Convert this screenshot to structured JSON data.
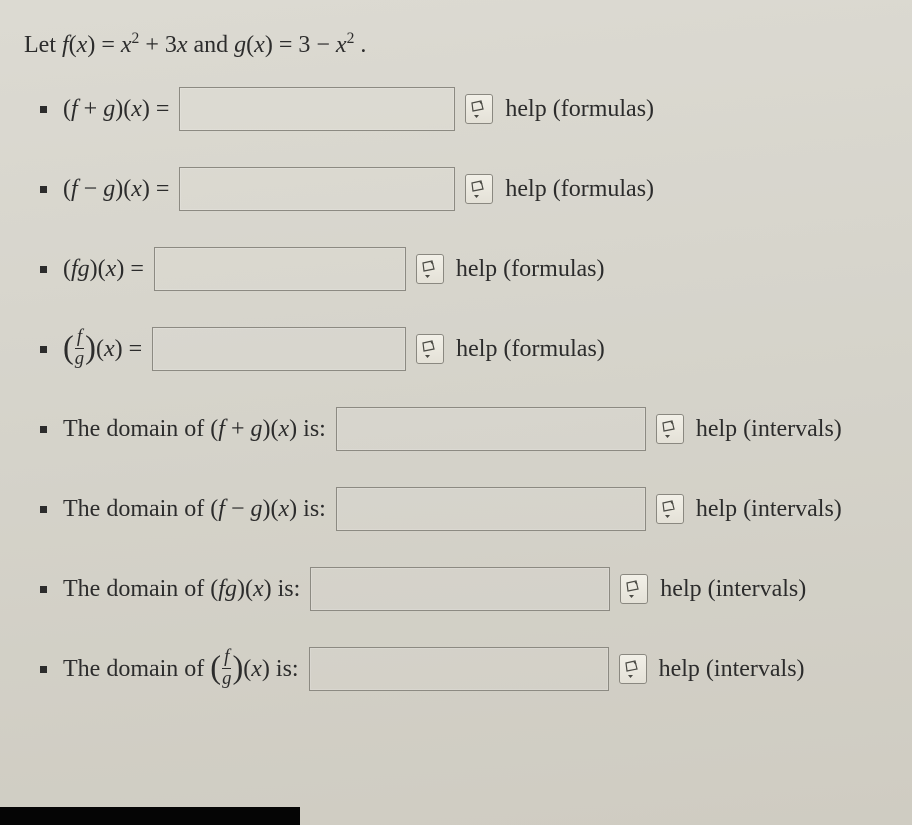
{
  "prompt": {
    "prefix": "Let ",
    "f_lhs_html": "<span class='math'>f</span><span class='paren'>(</span><span class='math'>x</span><span class='paren'>)</span> <span class='eq'>=</span> <span class='math'>x</span><span class='sup'>2</span> <span class='op'>+</span> <span class='num'>3</span><span class='math'>x</span>",
    "mid": " and ",
    "g_lhs_html": "<span class='math'>g</span><span class='paren'>(</span><span class='math'>x</span><span class='paren'>)</span> <span class='eq'>=</span> <span class='num'>3</span> <span class='op'>−</span> <span class='math'>x</span><span class='sup'>2</span>",
    "suffix": "."
  },
  "help_formulas": "help (formulas)",
  "help_intervals": "help (intervals)",
  "rows": {
    "r1_label_html": "<span class='paren'>(</span><span class='math'>f</span> <span class='op'>+</span> <span class='math'>g</span><span class='paren'>)(</span><span class='math'>x</span><span class='paren'>)</span> <span class='eq'>=</span>",
    "r2_label_html": "<span class='paren'>(</span><span class='math'>f</span> <span class='op'>−</span> <span class='math'>g</span><span class='paren'>)(</span><span class='math'>x</span><span class='paren'>)</span> <span class='eq'>=</span>",
    "r3_label_html": "<span class='paren'>(</span><span class='math'>f</span><span class='math'>g</span><span class='paren'>)(</span><span class='math'>x</span><span class='paren'>)</span> <span class='eq'>=</span>",
    "r4_label_html": "<span class='bigp'>(</span><span class='frac'><span class='num-f math'>f</span><span class='den math'>g</span></span><span class='bigp'>)</span><span class='paren'>(</span><span class='math'>x</span><span class='paren'>)</span> <span class='eq'>=</span>",
    "r5_label_html": "The domain of <span class='paren'>(</span><span class='math'>f</span> <span class='op'>+</span> <span class='math'>g</span><span class='paren'>)(</span><span class='math'>x</span><span class='paren'>)</span> is:",
    "r6_label_html": "The domain of <span class='paren'>(</span><span class='math'>f</span> <span class='op'>−</span> <span class='math'>g</span><span class='paren'>)(</span><span class='math'>x</span><span class='paren'>)</span> is:",
    "r7_label_html": "The domain of <span class='paren'>(</span><span class='math'>f</span><span class='math'>g</span><span class='paren'>)(</span><span class='math'>x</span><span class='paren'>)</span> is:",
    "r8_label_html": "The domain of <span class='bigp'>(</span><span class='frac'><span class='num-f math'>f</span><span class='den math'>g</span></span><span class='bigp'>)</span><span class='paren'>(</span><span class='math'>x</span><span class='paren'>)</span> is:"
  },
  "colors": {
    "text": "#2c2c2c",
    "border": "#8c8a82",
    "bg_top": "#dcdad2",
    "bg_bottom": "#cfccc2",
    "spin_border": "#8a8880"
  }
}
